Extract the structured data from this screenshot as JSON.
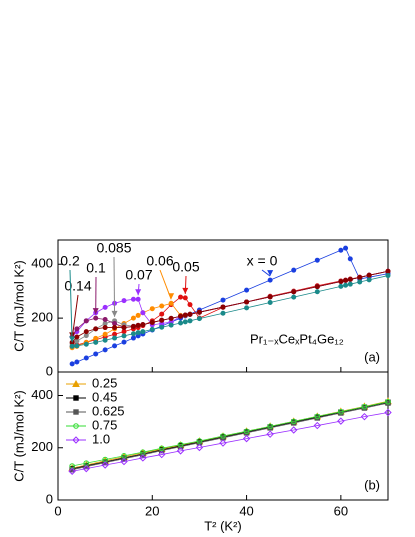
{
  "chart_data": [
    {
      "type": "line",
      "formula": "Pr₁₋ₓCeₓPt₄Ge₁₂",
      "panel_label": "(a)",
      "ylabel": "C/T (mJ/mol K²)",
      "x": [
        3,
        4,
        6,
        8,
        10,
        12,
        14,
        16,
        17,
        18,
        20,
        22,
        24,
        26,
        27,
        28,
        30,
        35,
        40,
        45,
        50,
        55,
        60,
        61,
        62,
        64,
        66,
        70
      ],
      "xlim": [
        0,
        70
      ],
      "xticks": [
        0,
        20,
        40,
        60
      ],
      "ylim": [
        0,
        490
      ],
      "yticks": [
        0,
        200,
        400
      ],
      "series": [
        {
          "name": "x = 0",
          "color": "#1a3fe0",
          "values": [
            30,
            37,
            52,
            67,
            82,
            97,
            111,
            126,
            134,
            141,
            156,
            171,
            185,
            200,
            208,
            215,
            230,
            267,
            304,
            341,
            378,
            415,
            452,
            460,
            420,
            345,
            352,
            365
          ]
        },
        {
          "name": "0.05",
          "color": "#e01010",
          "values": [
            95,
            100,
            110,
            120,
            130,
            140,
            150,
            160,
            165,
            172,
            190,
            215,
            250,
            278,
            275,
            250,
            200,
            240,
            260,
            281,
            300,
            320,
            338,
            341,
            345,
            352,
            359,
            374
          ]
        },
        {
          "name": "0.06",
          "color": "#ff8c00",
          "values": [
            90,
            95,
            110,
            125,
            140,
            160,
            180,
            200,
            210,
            220,
            235,
            245,
            255,
            210,
            210,
            215,
            222,
            241,
            260,
            279,
            298,
            317,
            336,
            340,
            344,
            351,
            359,
            374
          ]
        },
        {
          "name": "0.07",
          "color": "#9b30ff",
          "values": [
            130,
            150,
            190,
            220,
            240,
            255,
            265,
            270,
            270,
            220,
            175,
            180,
            185,
            207,
            211,
            214,
            222,
            241,
            260,
            279,
            298,
            317,
            336,
            340,
            344,
            351,
            359,
            374
          ]
        },
        {
          "name": "0.085",
          "color": "#888888",
          "values": [
            105,
            115,
            135,
            160,
            180,
            190,
            175,
            170,
            173,
            176,
            184,
            192,
            199,
            207,
            211,
            214,
            222,
            241,
            260,
            279,
            298,
            317,
            336,
            340,
            344,
            351,
            359,
            374
          ]
        },
        {
          "name": "0.1",
          "color": "#8b1a6b",
          "values": [
            130,
            160,
            190,
            200,
            195,
            180,
            165,
            169,
            173,
            176,
            184,
            192,
            199,
            207,
            211,
            214,
            222,
            241,
            260,
            279,
            298,
            317,
            336,
            340,
            344,
            351,
            359,
            374
          ]
        },
        {
          "name": "0.14",
          "color": "#8b0000",
          "values": [
            110,
            130,
            150,
            160,
            165,
            165,
            165,
            169,
            173,
            176,
            184,
            192,
            199,
            207,
            211,
            214,
            222,
            241,
            260,
            279,
            298,
            317,
            336,
            340,
            344,
            351,
            359,
            374
          ]
        },
        {
          "name": "0.2",
          "color": "#1a8a8a",
          "values": [
            95,
            97,
            103,
            110,
            118,
            126,
            134,
            142,
            146,
            150,
            158,
            166,
            174,
            182,
            186,
            190,
            198,
            218,
            238,
            258,
            278,
            298,
            318,
            322,
            326,
            334,
            342,
            358
          ]
        }
      ]
    },
    {
      "type": "line",
      "panel_label": "(b)",
      "ylabel": "C/T (mJ/mol K²)",
      "xlabel": "T² (K²)",
      "legend": "upper left",
      "x": [
        3,
        6,
        10,
        14,
        18,
        22,
        26,
        30,
        35,
        40,
        45,
        50,
        55,
        60,
        65,
        70
      ],
      "xlim": [
        0,
        70
      ],
      "xticks": [
        0,
        20,
        40,
        60
      ],
      "ylim": [
        0,
        490
      ],
      "yticks": [
        0,
        200,
        400
      ],
      "series": [
        {
          "name": "0.25",
          "color": "#e8a000",
          "marker": "triangle",
          "values": [
            122,
            134,
            150,
            165,
            180,
            195,
            210,
            225,
            244,
            263,
            282,
            301,
            320,
            339,
            358,
            378
          ]
        },
        {
          "name": "0.45",
          "color": "#000000",
          "marker": "square",
          "values": [
            119,
            131,
            146,
            161,
            176,
            192,
            207,
            222,
            241,
            260,
            279,
            298,
            317,
            336,
            355,
            374
          ]
        },
        {
          "name": "0.625",
          "color": "#555555",
          "marker": "square",
          "values": [
            116,
            128,
            143,
            158,
            173,
            189,
            204,
            219,
            238,
            257,
            276,
            295,
            314,
            333,
            352,
            371
          ]
        },
        {
          "name": "0.75",
          "color": "#33dd33",
          "marker": "circle",
          "values": [
            130,
            141,
            155,
            169,
            183,
            198,
            212,
            226,
            245,
            263,
            282,
            301,
            320,
            338,
            357,
            376
          ]
        },
        {
          "name": "1.0",
          "color": "#9b30ff",
          "marker": "diamond",
          "values": [
            110,
            120,
            134,
            147,
            161,
            174,
            188,
            201,
            218,
            235,
            252,
            268,
            285,
            302,
            319,
            335
          ]
        }
      ]
    }
  ]
}
